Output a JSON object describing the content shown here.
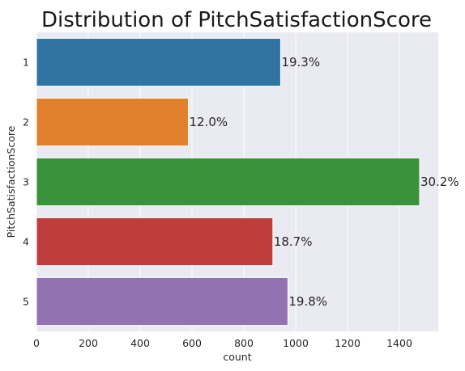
{
  "chart_data": {
    "type": "bar",
    "orientation": "horizontal",
    "title": "Distribution of PitchSatisfactionScore",
    "xlabel": "count",
    "ylabel": "PitchSatisfactionScore",
    "categories": [
      "1",
      "2",
      "3",
      "4",
      "5"
    ],
    "values": [
      942,
      586,
      1478,
      912,
      970
    ],
    "data_labels": [
      "19.3%",
      "12.0%",
      "30.2%",
      "18.7%",
      "19.8%"
    ],
    "colors": [
      "#3274a1",
      "#e1812c",
      "#3a923a",
      "#c03d3e",
      "#9372b2"
    ],
    "xlim": [
      0,
      1550
    ],
    "xticks": [
      0,
      200,
      400,
      600,
      800,
      1000,
      1200,
      1400
    ],
    "grid": true,
    "legend": "none"
  }
}
